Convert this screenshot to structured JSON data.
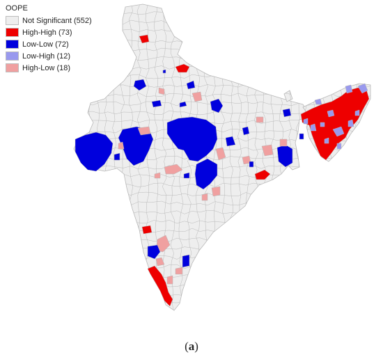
{
  "legend": {
    "title": "OOPE",
    "items": [
      {
        "label": "Not Significant (552)",
        "color": "#eeeeee"
      },
      {
        "label": "High-High (73)",
        "color": "#ee0000"
      },
      {
        "label": "Low-Low (72)",
        "color": "#0000dd"
      },
      {
        "label": "Low-High (12)",
        "color": "#9999ee"
      },
      {
        "label": "High-Low (18)",
        "color": "#f0a0a0"
      }
    ]
  },
  "caption": {
    "open": "(",
    "letter": "a",
    "close": ")"
  },
  "colors": {
    "not_significant": "#eeeeee",
    "high_high": "#ee0000",
    "low_low": "#0000dd",
    "low_high": "#9999ee",
    "high_low": "#f0a0a0",
    "boundary": "#b8b8b8"
  }
}
